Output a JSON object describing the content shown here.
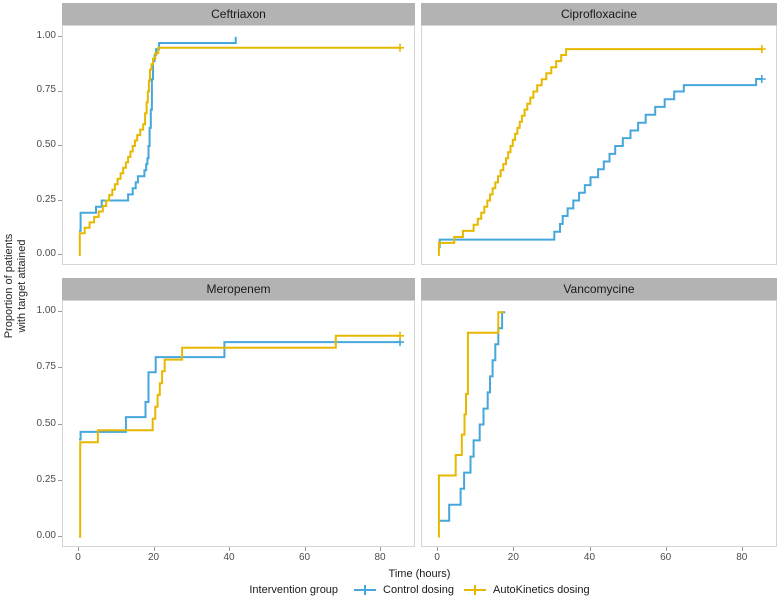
{
  "figure": {
    "y_axis_label_line1": "Proportion of patients",
    "y_axis_label_line2": "with target attained",
    "x_axis_label": "Time (hours)",
    "y_ticks": [
      "1.00",
      "0.75",
      "0.50",
      "0.25",
      "0.00"
    ],
    "y_tick_values": [
      1.0,
      0.75,
      0.5,
      0.25,
      0.0
    ],
    "x_ticks": [
      "0",
      "20",
      "40",
      "60",
      "80"
    ],
    "x_tick_values": [
      0,
      20,
      40,
      60,
      80
    ],
    "legend": {
      "title": "Intervention group",
      "items": [
        {
          "label": "Control dosing",
          "color": "#45a7db"
        },
        {
          "label": "AutoKinetics dosing",
          "color": "#e7b800"
        }
      ]
    },
    "colors": {
      "control": "#45a7db",
      "autokinetics": "#e7b800",
      "strip_background": "#b3b3b3",
      "panel_border": "#d5d5d5",
      "tick_text": "#4d4d4d"
    }
  },
  "chart_data": [
    {
      "type": "line",
      "subtype": "step-survival",
      "title": "Ceftriaxon",
      "xlabel": "Time (hours)",
      "ylabel": "Proportion of patients with target attained",
      "xlim": [
        0,
        85
      ],
      "ylim": [
        0,
        1
      ],
      "grid": false,
      "legend_position": "bottom",
      "series": [
        {
          "name": "Control dosing",
          "color": "#45a7db",
          "end_t": 41.5,
          "censored_at_end": false,
          "points": [
            [
              0,
              0.111
            ],
            [
              0.4,
              0.194
            ],
            [
              4.5,
              0.222
            ],
            [
              6,
              0.25
            ],
            [
              13,
              0.278
            ],
            [
              14.2,
              0.306
            ],
            [
              15,
              0.333
            ],
            [
              15.6,
              0.361
            ],
            [
              17.3,
              0.389
            ],
            [
              17.8,
              0.417
            ],
            [
              18.1,
              0.444
            ],
            [
              18.4,
              0.5
            ],
            [
              18.7,
              0.583
            ],
            [
              19,
              0.667
            ],
            [
              19.3,
              0.806
            ],
            [
              19.6,
              0.889
            ],
            [
              20,
              0.917
            ],
            [
              20.4,
              0.944
            ],
            [
              21.2,
              0.972
            ],
            [
              41.5,
              1.0
            ]
          ]
        },
        {
          "name": "AutoKinetics dosing",
          "color": "#e7b800",
          "end_t": 85,
          "censored_at_end": true,
          "points": [
            [
              0,
              0
            ],
            [
              0.2,
              0.1
            ],
            [
              1.5,
              0.125
            ],
            [
              2.8,
              0.15
            ],
            [
              4,
              0.175
            ],
            [
              5.2,
              0.2
            ],
            [
              6.3,
              0.225
            ],
            [
              7.2,
              0.25
            ],
            [
              8,
              0.275
            ],
            [
              8.8,
              0.3
            ],
            [
              9.5,
              0.325
            ],
            [
              10.2,
              0.35
            ],
            [
              11,
              0.375
            ],
            [
              11.7,
              0.4
            ],
            [
              12.4,
              0.425
            ],
            [
              13,
              0.45
            ],
            [
              13.6,
              0.475
            ],
            [
              14.2,
              0.5
            ],
            [
              14.8,
              0.525
            ],
            [
              15.4,
              0.55
            ],
            [
              16.2,
              0.575
            ],
            [
              17,
              0.6
            ],
            [
              17.5,
              0.65
            ],
            [
              17.9,
              0.7
            ],
            [
              18.2,
              0.75
            ],
            [
              18.5,
              0.8
            ],
            [
              18.8,
              0.85
            ],
            [
              19.2,
              0.875
            ],
            [
              19.6,
              0.9
            ],
            [
              20.2,
              0.925
            ],
            [
              21,
              0.95
            ]
          ]
        }
      ]
    },
    {
      "type": "line",
      "subtype": "step-survival",
      "title": "Ciprofloxacine",
      "xlabel": "Time (hours)",
      "ylabel": "Proportion of patients with target attained",
      "xlim": [
        0,
        85
      ],
      "ylim": [
        0,
        1
      ],
      "grid": false,
      "legend_position": "bottom",
      "series": [
        {
          "name": "Control dosing",
          "color": "#45a7db",
          "end_t": 85,
          "censored_at_end": true,
          "points": [
            [
              0,
              0.036
            ],
            [
              0.4,
              0.071
            ],
            [
              30.5,
              0.107
            ],
            [
              32,
              0.143
            ],
            [
              32.7,
              0.179
            ],
            [
              34,
              0.214
            ],
            [
              35.5,
              0.25
            ],
            [
              37,
              0.286
            ],
            [
              38.5,
              0.321
            ],
            [
              40,
              0.357
            ],
            [
              42,
              0.393
            ],
            [
              43.5,
              0.429
            ],
            [
              45,
              0.464
            ],
            [
              46.5,
              0.5
            ],
            [
              48.5,
              0.536
            ],
            [
              50.5,
              0.571
            ],
            [
              52.5,
              0.607
            ],
            [
              54.5,
              0.643
            ],
            [
              57,
              0.679
            ],
            [
              59.5,
              0.714
            ],
            [
              62,
              0.75
            ],
            [
              64.5,
              0.779
            ],
            [
              83.5,
              0.807
            ]
          ]
        },
        {
          "name": "AutoKinetics dosing",
          "color": "#e7b800",
          "end_t": 85,
          "censored_at_end": true,
          "points": [
            [
              0,
              0
            ],
            [
              0.2,
              0.056
            ],
            [
              4.2,
              0.083
            ],
            [
              6.5,
              0.111
            ],
            [
              9.3,
              0.139
            ],
            [
              10.4,
              0.167
            ],
            [
              11.3,
              0.194
            ],
            [
              12.1,
              0.222
            ],
            [
              12.9,
              0.25
            ],
            [
              13.6,
              0.278
            ],
            [
              14.3,
              0.306
            ],
            [
              15,
              0.333
            ],
            [
              15.7,
              0.361
            ],
            [
              16.4,
              0.389
            ],
            [
              17.1,
              0.417
            ],
            [
              17.8,
              0.444
            ],
            [
              18.4,
              0.472
            ],
            [
              19,
              0.5
            ],
            [
              19.6,
              0.528
            ],
            [
              20.2,
              0.556
            ],
            [
              20.8,
              0.583
            ],
            [
              21.4,
              0.611
            ],
            [
              22,
              0.639
            ],
            [
              22.7,
              0.667
            ],
            [
              23.4,
              0.694
            ],
            [
              24.2,
              0.722
            ],
            [
              25,
              0.75
            ],
            [
              26,
              0.778
            ],
            [
              27.2,
              0.806
            ],
            [
              28.4,
              0.833
            ],
            [
              29.7,
              0.861
            ],
            [
              31,
              0.889
            ],
            [
              32.3,
              0.917
            ],
            [
              33.6,
              0.944
            ]
          ]
        }
      ]
    },
    {
      "type": "line",
      "subtype": "step-survival",
      "title": "Meropenem",
      "xlabel": "Time (hours)",
      "ylabel": "Proportion of patients with target attained",
      "xlim": [
        0,
        85
      ],
      "ylim": [
        0,
        1
      ],
      "grid": false,
      "legend_position": "bottom",
      "series": [
        {
          "name": "Control dosing",
          "color": "#45a7db",
          "end_t": 85,
          "censored_at_end": true,
          "points": [
            [
              0,
              0.433
            ],
            [
              0.4,
              0.467
            ],
            [
              12.4,
              0.533
            ],
            [
              17.6,
              0.6
            ],
            [
              18.4,
              0.733
            ],
            [
              20.3,
              0.8
            ],
            [
              38.5,
              0.867
            ]
          ]
        },
        {
          "name": "AutoKinetics dosing",
          "color": "#e7b800",
          "end_t": 85,
          "censored_at_end": true,
          "points": [
            [
              0,
              0
            ],
            [
              0.3,
              0.421
            ],
            [
              5,
              0.474
            ],
            [
              19.5,
              0.526
            ],
            [
              20.2,
              0.579
            ],
            [
              20.8,
              0.632
            ],
            [
              21.4,
              0.684
            ],
            [
              22,
              0.737
            ],
            [
              22.7,
              0.789
            ],
            [
              27.3,
              0.842
            ],
            [
              68,
              0.895
            ]
          ]
        }
      ]
    },
    {
      "type": "line",
      "subtype": "step-survival",
      "title": "Vancomycine",
      "xlabel": "Time (hours)",
      "ylabel": "Proportion of patients with target attained",
      "xlim": [
        0,
        85
      ],
      "ylim": [
        0,
        1
      ],
      "grid": false,
      "legend_position": "bottom",
      "series": [
        {
          "name": "Control dosing",
          "color": "#45a7db",
          "end_t": 17.6,
          "censored_at_end": false,
          "points": [
            [
              0,
              0.071
            ],
            [
              2.9,
              0.143
            ],
            [
              5.9,
              0.214
            ],
            [
              6.8,
              0.286
            ],
            [
              8.5,
              0.357
            ],
            [
              9.3,
              0.429
            ],
            [
              10.9,
              0.5
            ],
            [
              11.9,
              0.571
            ],
            [
              13,
              0.643
            ],
            [
              13.6,
              0.714
            ],
            [
              14.3,
              0.786
            ],
            [
              15,
              0.857
            ],
            [
              15.8,
              0.929
            ],
            [
              16.8,
              1.0
            ]
          ]
        },
        {
          "name": "AutoKinetics dosing",
          "color": "#e7b800",
          "end_t": 17.2,
          "censored_at_end": false,
          "points": [
            [
              0,
              0
            ],
            [
              0.2,
              0.273
            ],
            [
              4.6,
              0.364
            ],
            [
              6.2,
              0.455
            ],
            [
              6.9,
              0.545
            ],
            [
              7.3,
              0.636
            ],
            [
              7.8,
              0.909
            ],
            [
              15.8,
              1.0
            ]
          ]
        }
      ]
    }
  ]
}
